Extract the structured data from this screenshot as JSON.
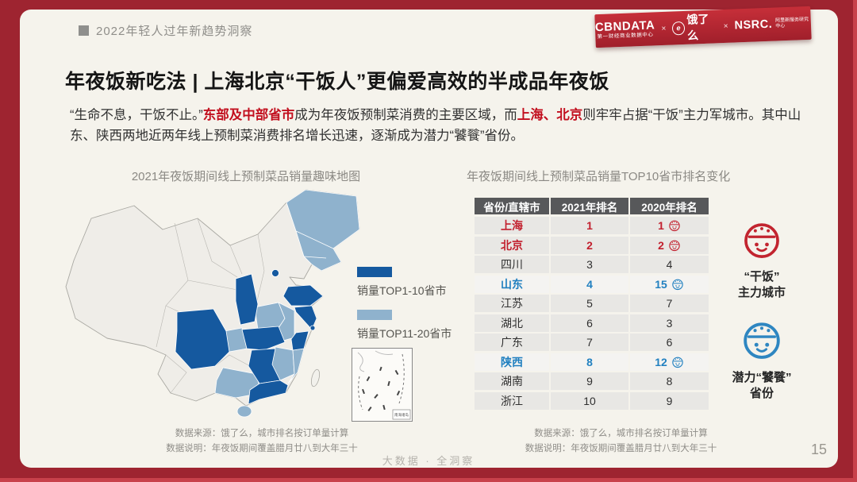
{
  "colors": {
    "frame_red": "#9E2430",
    "bright_red": "#C8414B",
    "card_bg": "#F5F3EC",
    "ink": "#151515",
    "body_text": "#303030",
    "accent_red": "#C20F1E",
    "gray_text": "#8B8984",
    "table_header_bg": "#57585A",
    "row_bg": "#E8E7E4",
    "row_bg_light": "#F4F3F1",
    "rank_red": "#C2202E",
    "rank_blue": "#2180C0",
    "tier1": "#15599F",
    "tier2": "#8FB2CD",
    "land": "#EFEDE8",
    "land_border": "#A9A8A2",
    "badge_red": "#C2242F",
    "badge_blue": "#2E86C1"
  },
  "header": {
    "breadcrumb": "2022年轻人过年新趋势洞察",
    "brand": {
      "cbndata": "CBNDATA",
      "cbndata_sub": "第一财经商业数据中心",
      "sep": "×",
      "eleme_mark": "e",
      "eleme": "饿了么",
      "nsrc": "NSRC.",
      "nsrc_sub": "阿里新服务研究中心"
    }
  },
  "title": "年夜饭新吃法 | 上海北京“干饭人”更偏爱高效的半成品年夜饭",
  "intro": {
    "segments": [
      {
        "text": "“生命不息，干饭不止。”",
        "emphasis": false
      },
      {
        "text": "东部及中部省市",
        "emphasis": true
      },
      {
        "text": "成为年夜饭预制菜消费的主要区域，而",
        "emphasis": false
      },
      {
        "text": "上海、北京",
        "emphasis": true
      },
      {
        "text": "则牢牢占据“干饭”主力军城市。其中山东、陕西两地近两年线上预制菜消费排名增长迅速，逐渐成为潜力“饕餮”省份。",
        "emphasis": false
      }
    ]
  },
  "map_section": {
    "title": "2021年夜饭期间线上预制菜品销量趣味地图",
    "legend": [
      {
        "label": "销量TOP1-10省市",
        "color": "#15599F"
      },
      {
        "label": "销量TOP11-20省市",
        "color": "#8FB2CD"
      }
    ],
    "inset_label": "南海诸岛",
    "source": "数据来源：饿了么，城市排名按订单量计算",
    "note": "数据说明：年夜饭期间覆盖腊月廿八到大年三十"
  },
  "table_section": {
    "title": "年夜饭期间线上预制菜品销量TOP10省市排名变化",
    "columns": [
      "省份/直辖市",
      "2021年排名",
      "2020年排名"
    ],
    "rows": [
      {
        "province": "上海",
        "rank_2021": "1",
        "rank_2020": "1",
        "highlight": "red",
        "icon": true
      },
      {
        "province": "北京",
        "rank_2021": "2",
        "rank_2020": "2",
        "highlight": "red",
        "icon": true
      },
      {
        "province": "四川",
        "rank_2021": "3",
        "rank_2020": "4",
        "highlight": "",
        "icon": false
      },
      {
        "province": "山东",
        "rank_2021": "4",
        "rank_2020": "15",
        "highlight": "blue",
        "icon": true
      },
      {
        "province": "江苏",
        "rank_2021": "5",
        "rank_2020": "7",
        "highlight": "",
        "icon": false
      },
      {
        "province": "湖北",
        "rank_2021": "6",
        "rank_2020": "3",
        "highlight": "",
        "icon": false
      },
      {
        "province": "广东",
        "rank_2021": "7",
        "rank_2020": "6",
        "highlight": "",
        "icon": false
      },
      {
        "province": "陕西",
        "rank_2021": "8",
        "rank_2020": "12",
        "highlight": "blue",
        "icon": true
      },
      {
        "province": "湖南",
        "rank_2021": "9",
        "rank_2020": "8",
        "highlight": "",
        "icon": false
      },
      {
        "province": "浙江",
        "rank_2021": "10",
        "rank_2020": "9",
        "highlight": "",
        "icon": false
      }
    ],
    "source": "数据来源：饿了么，城市排名按订单量计算",
    "note": "数据说明：年夜饭期间覆盖腊月廿八到大年三十"
  },
  "side_badges": [
    {
      "line1": "“干饭”",
      "line2": "主力城市"
    },
    {
      "line1": "潜力“饕餮”",
      "line2": "省份"
    }
  ],
  "footer": {
    "watermark": "大数据 · 全洞察",
    "page_number": "15"
  },
  "chart_data": {
    "type": "table",
    "title": "年夜饭期间线上预制菜品销量TOP10省市排名变化",
    "columns": [
      "省份/直辖市",
      "2021年排名",
      "2020年排名"
    ],
    "rows": [
      [
        "上海",
        1,
        1
      ],
      [
        "北京",
        2,
        2
      ],
      [
        "四川",
        3,
        4
      ],
      [
        "山东",
        4,
        15
      ],
      [
        "江苏",
        5,
        7
      ],
      [
        "湖北",
        6,
        3
      ],
      [
        "广东",
        7,
        6
      ],
      [
        "陕西",
        8,
        12
      ],
      [
        "湖南",
        9,
        8
      ],
      [
        "浙江",
        10,
        9
      ]
    ],
    "legend": [
      "销量TOP1-10省市",
      "销量TOP11-20省市"
    ]
  }
}
